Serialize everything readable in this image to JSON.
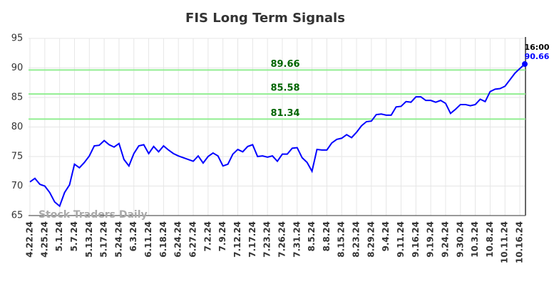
{
  "chart_data": {
    "type": "line",
    "title": "FIS Long Term Signals",
    "watermark": "Stock Traders Daily",
    "categories": [
      "4.22.24",
      null,
      null,
      "4.25.24",
      null,
      null,
      "5.1.24",
      null,
      null,
      "5.7.24",
      null,
      null,
      "5.13.24",
      null,
      null,
      "5.17.24",
      null,
      null,
      "5.24.24",
      null,
      null,
      "6.3.24",
      null,
      null,
      "6.11.24",
      null,
      null,
      "6.18.24",
      null,
      null,
      "6.24.24",
      null,
      null,
      "6.27.24",
      null,
      null,
      "7.2.24",
      null,
      null,
      "7.9.24",
      null,
      null,
      "7.12.24",
      null,
      null,
      "7.17.24",
      null,
      null,
      "7.23.24",
      null,
      null,
      "7.26.24",
      null,
      null,
      "7.31.24",
      null,
      null,
      "8.5.24",
      null,
      null,
      "8.8.24",
      null,
      null,
      "8.15.24",
      null,
      null,
      "8.23.24",
      null,
      null,
      "8.29.24",
      null,
      null,
      "9.4.24",
      null,
      null,
      "9.11.24",
      null,
      null,
      "9.16.24",
      null,
      null,
      "9.19.24",
      null,
      null,
      "9.24.24",
      null,
      null,
      "9.30.24",
      null,
      null,
      "10.3.24",
      null,
      null,
      "10.8.24",
      null,
      null,
      "10.11.24",
      null,
      null,
      "10.16.24",
      null
    ],
    "values": [
      70.7,
      71.3,
      70.3,
      70.0,
      68.9,
      67.3,
      66.6,
      68.9,
      70.2,
      73.7,
      73.1,
      74.0,
      75.1,
      76.8,
      76.9,
      77.7,
      77.0,
      76.6,
      77.2,
      74.5,
      73.4,
      75.5,
      76.8,
      77.0,
      75.5,
      76.7,
      75.8,
      76.8,
      76.1,
      75.5,
      75.1,
      74.8,
      74.5,
      74.2,
      75.1,
      73.9,
      75.0,
      75.6,
      75.1,
      73.4,
      73.7,
      75.4,
      76.2,
      75.8,
      76.7,
      77.0,
      75.0,
      75.1,
      74.9,
      75.1,
      74.2,
      75.4,
      75.4,
      76.4,
      76.5,
      74.8,
      74.0,
      72.5,
      76.2,
      76.1,
      76.1,
      77.3,
      77.9,
      78.1,
      78.7,
      78.2,
      79.1,
      80.2,
      80.9,
      81.0,
      82.1,
      82.2,
      82.0,
      82.0,
      83.4,
      83.5,
      84.3,
      84.2,
      85.1,
      85.1,
      84.5,
      84.5,
      84.2,
      84.5,
      84.0,
      82.3,
      83.0,
      83.8,
      83.8,
      83.6,
      83.8,
      84.7,
      84.3,
      86.0,
      86.4,
      86.5,
      86.9,
      88.0,
      89.1,
      89.9,
      90.66
    ],
    "color": "#0000ff",
    "hlines": [
      89.66,
      85.58,
      81.34
    ],
    "hline_color": "#90ee90",
    "hline_label_color": "#006400",
    "last_time": "16:00",
    "ylim": [
      65,
      95
    ],
    "yticks": [
      65,
      70,
      75,
      80,
      85,
      90,
      95
    ],
    "grid": true
  }
}
